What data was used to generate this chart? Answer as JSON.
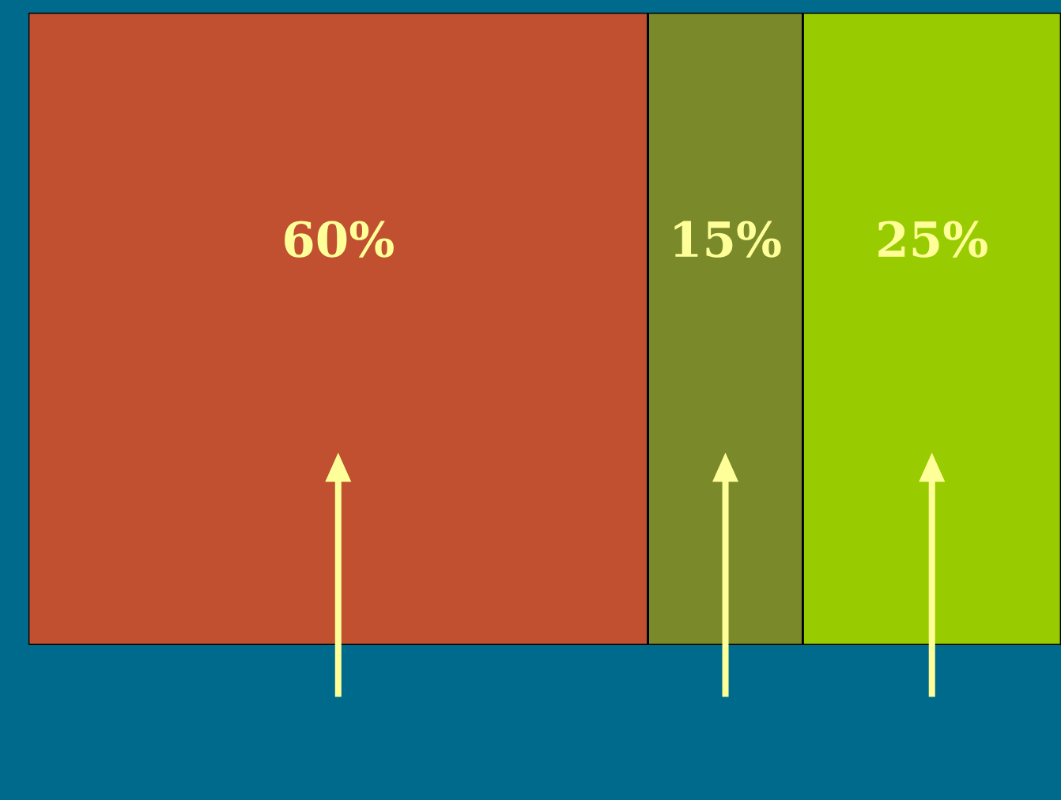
{
  "chart_data": {
    "type": "bar",
    "orientation": "horizontal",
    "stacked": true,
    "categories": [
      null
    ],
    "xlim": [
      0,
      100
    ],
    "legend": false,
    "series": [
      {
        "color": "#c05030",
        "values": [
          60
        ],
        "value_labels": [
          "60%"
        ]
      },
      {
        "color": "#7a8a2a",
        "values": [
          15
        ],
        "value_labels": [
          "15%"
        ]
      },
      {
        "color": "#99cc00",
        "values": [
          25
        ],
        "value_labels": [
          "25%"
        ]
      }
    ]
  }
}
